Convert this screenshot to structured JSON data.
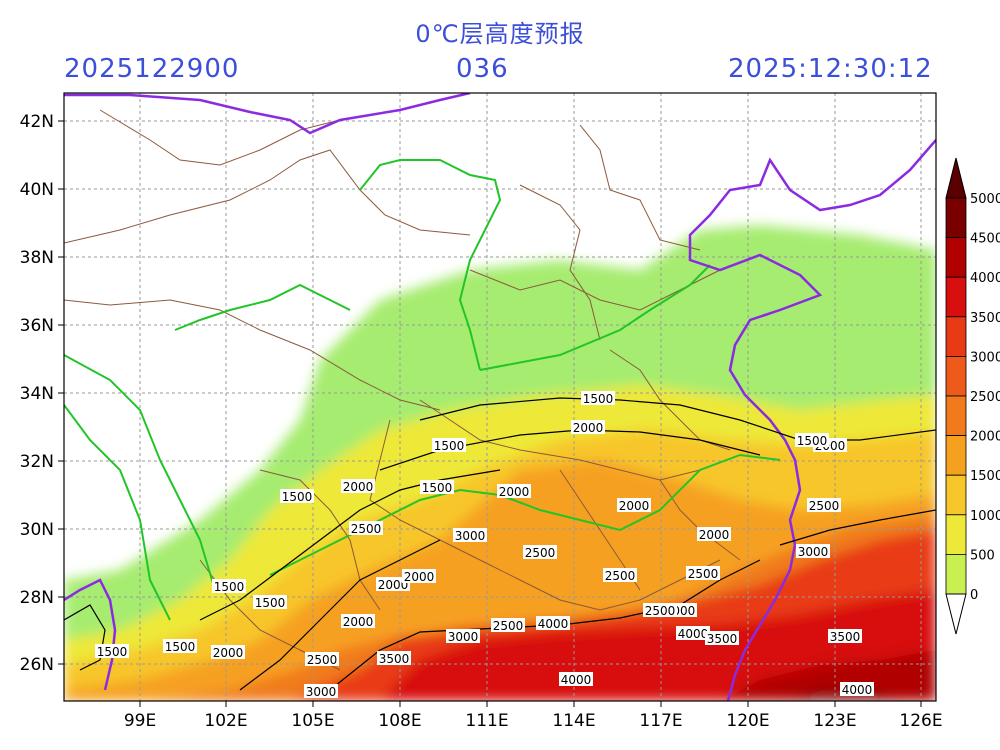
{
  "header": {
    "title": "0℃层高度预报",
    "run_time": "2025122900",
    "lead_hours": "036",
    "valid_time": "2025:12:30:12"
  },
  "axes": {
    "lat_labels": [
      "42N",
      "40N",
      "38N",
      "36N",
      "34N",
      "32N",
      "30N",
      "28N",
      "26N"
    ],
    "lon_labels": [
      "99E",
      "102E",
      "105E",
      "108E",
      "111E",
      "114E",
      "117E",
      "120E",
      "123E",
      "126E"
    ]
  },
  "colorbar": {
    "labels": [
      "5000",
      "4500",
      "4000",
      "3500",
      "3000",
      "2500",
      "2000",
      "1500",
      "1000",
      "500",
      "0"
    ],
    "colors": [
      "#7a0000",
      "#b00000",
      "#d80f0f",
      "#e83a14",
      "#ee5a1a",
      "#f07a1c",
      "#f6a020",
      "#f7c62a",
      "#eee838",
      "#c8f050",
      "#8ce67a"
    ]
  },
  "contour_labels": [
    {
      "text": "1500"
    },
    {
      "text": "2000"
    },
    {
      "text": "1500"
    },
    {
      "text": "2000"
    },
    {
      "text": "1500"
    },
    {
      "text": "2000"
    },
    {
      "text": "1500"
    },
    {
      "text": "2000"
    },
    {
      "text": "2500"
    },
    {
      "text": "2000"
    },
    {
      "text": "1500"
    },
    {
      "text": "2000"
    },
    {
      "text": "2500"
    },
    {
      "text": "2000"
    },
    {
      "text": "2000"
    },
    {
      "text": "2500"
    },
    {
      "text": "2500"
    },
    {
      "text": "3000"
    },
    {
      "text": "1500"
    },
    {
      "text": "1500"
    },
    {
      "text": "2000"
    },
    {
      "text": "1500"
    },
    {
      "text": "1500"
    },
    {
      "text": "2000"
    },
    {
      "text": "2000"
    },
    {
      "text": "2500"
    },
    {
      "text": "2500"
    },
    {
      "text": "3500"
    },
    {
      "text": "3000"
    },
    {
      "text": "2500"
    },
    {
      "text": "4000"
    },
    {
      "text": "3000"
    },
    {
      "text": "4000"
    },
    {
      "text": "3500"
    },
    {
      "text": "3500"
    },
    {
      "text": "4000"
    },
    {
      "text": "3000"
    },
    {
      "text": "4000"
    },
    {
      "text": "2500"
    },
    {
      "text": "3000"
    }
  ]
}
